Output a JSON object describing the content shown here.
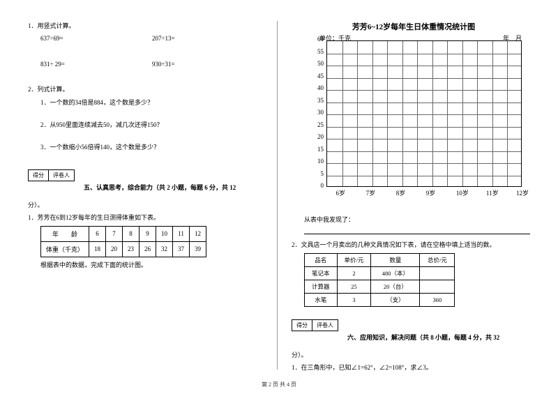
{
  "left": {
    "q1": {
      "title": "1．用竖式计算。",
      "a": "637÷69=",
      "b": "207÷13=",
      "c": "831÷ 29=",
      "d": "930÷31="
    },
    "q2": {
      "title": "2．列式计算。",
      "s1": "1．一个数的34倍是884，这个数是多少？",
      "s2": "2．从950里面连续减去50，减几次还得150？",
      "s3": "3．一个数缩小56倍得140，这个数是多少？"
    },
    "score": {
      "a": "得分",
      "b": "评卷人"
    },
    "sec5": "五、认真思考，综合能力（共 2 小题，每题 6 分，共 12",
    "fen": "分）。",
    "q5_1": "1．芳芳在6到12岁每年的生日测得体重如下表。",
    "weight": {
      "h1": "年　　龄",
      "h2": "体重（千克）",
      "ages": [
        "6",
        "7",
        "8",
        "9",
        "10",
        "11",
        "12"
      ],
      "vals": [
        "18",
        "20",
        "23",
        "26",
        "32",
        "37",
        "39"
      ]
    },
    "q5_1b": "根据表中的数据，完成下面的统计图。"
  },
  "right": {
    "chart": {
      "title": "芳芳6~12岁每年生日体重情况统计图",
      "unit": "单位：千克",
      "date": "年　月",
      "yticks": [
        "60",
        "55",
        "50",
        "45",
        "40",
        "35",
        "30",
        "25",
        "20",
        "15",
        "10",
        "5",
        "0"
      ],
      "xticks": [
        "6岁",
        "7岁",
        "8岁",
        "9岁",
        "10岁",
        "11岁",
        "12岁"
      ]
    },
    "obs": "从表中我发现了：",
    "q2_2": "2．文具店一个月卖出的几种文具情况如下表，请在空格中填上适当的数。",
    "tbl2": {
      "headers": [
        "品名",
        "单价/元",
        "数量",
        "总价/元"
      ],
      "rows": [
        [
          "笔记本",
          "2",
          "480（本）",
          ""
        ],
        [
          "计算器",
          "25",
          "20（台）",
          ""
        ],
        [
          "水笔",
          "3",
          "（支）",
          "360"
        ]
      ]
    },
    "score": {
      "a": "得分",
      "b": "评卷人"
    },
    "sec6": "六、应用知识，解决问题（共 8 小题，每题 4 分，共 32",
    "fen": "分）。",
    "q6_1": "1．在三角形中，已知∠1=62°，∠2=108°，求∠3。"
  },
  "footer": "第 2 页 共 4 页"
}
